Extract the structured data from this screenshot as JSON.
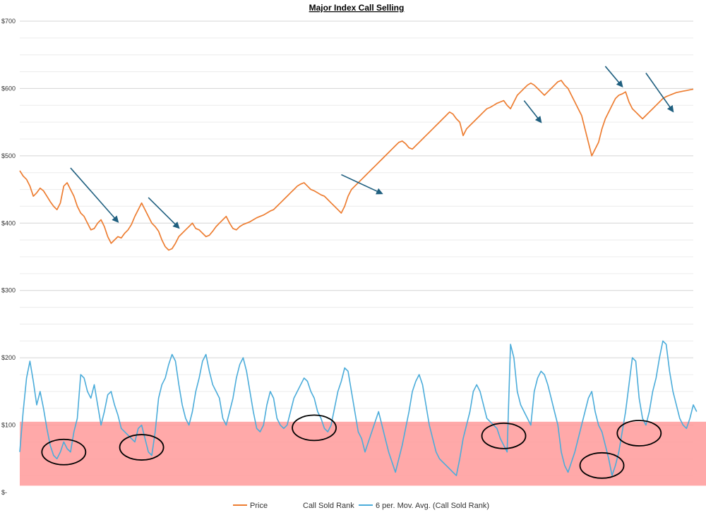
{
  "chart_data": {
    "type": "line",
    "title": "Major Index Call Selling",
    "y_axis": {
      "min": 0,
      "max": 700,
      "tick_values": [
        0,
        100,
        200,
        300,
        400,
        500,
        600,
        700
      ],
      "tick_labels": [
        "$-",
        "$100",
        "$200",
        "$300",
        "$400",
        "$500",
        "$600",
        "$700"
      ]
    },
    "x_axis": {
      "labels_shown": false,
      "num_points": 200
    },
    "grid": true,
    "legend_position": "bottom",
    "colors": {
      "price": "#ED7D31",
      "ma": "#4BACDA",
      "shade": "#FF9A9A",
      "arrow": "#1F5F7F",
      "circle": "#000000"
    },
    "highlight_band": {
      "y_from": 10,
      "y_to": 105
    },
    "series": [
      {
        "name": "Price",
        "key": "price",
        "values": [
          478,
          470,
          465,
          455,
          440,
          445,
          452,
          448,
          440,
          432,
          425,
          420,
          430,
          455,
          460,
          450,
          440,
          425,
          415,
          410,
          400,
          390,
          392,
          400,
          405,
          395,
          380,
          370,
          375,
          380,
          378,
          385,
          390,
          398,
          410,
          420,
          430,
          420,
          410,
          400,
          395,
          388,
          375,
          365,
          360,
          362,
          370,
          380,
          385,
          390,
          395,
          400,
          392,
          390,
          385,
          380,
          382,
          388,
          395,
          400,
          405,
          410,
          400,
          392,
          390,
          395,
          398,
          400,
          402,
          405,
          408,
          410,
          412,
          415,
          418,
          420,
          425,
          430,
          435,
          440,
          445,
          450,
          455,
          458,
          460,
          455,
          450,
          448,
          445,
          442,
          440,
          435,
          430,
          425,
          420,
          415,
          425,
          440,
          450,
          455,
          460,
          465,
          470,
          475,
          480,
          485,
          490,
          495,
          500,
          505,
          510,
          515,
          520,
          522,
          518,
          512,
          510,
          515,
          520,
          525,
          530,
          535,
          540,
          545,
          550,
          555,
          560,
          565,
          562,
          555,
          550,
          530,
          540,
          545,
          550,
          555,
          560,
          565,
          570,
          572,
          575,
          578,
          580,
          582,
          575,
          570,
          580,
          590,
          595,
          600,
          605,
          608,
          605,
          600,
          595,
          590,
          595,
          600,
          605,
          610,
          612,
          605,
          600,
          590,
          580,
          570,
          560,
          540,
          520,
          500,
          510,
          520,
          540,
          555,
          565,
          575,
          585,
          590,
          592,
          595,
          580,
          570,
          565,
          560,
          555,
          560,
          565,
          570,
          575,
          580,
          585,
          588,
          590,
          592,
          594,
          595,
          596,
          597,
          598,
          599
        ],
        "color": "#ED7D31"
      },
      {
        "name": "Call Sold Rank",
        "key": "csr",
        "values": [],
        "color": "#ffffff"
      },
      {
        "name": "6 per. Mov. Avg. (Call Sold Rank)",
        "key": "ma",
        "values": [
          60,
          120,
          170,
          195,
          165,
          130,
          150,
          125,
          95,
          70,
          55,
          50,
          60,
          75,
          65,
          60,
          90,
          110,
          175,
          170,
          150,
          140,
          160,
          130,
          100,
          120,
          145,
          150,
          130,
          115,
          95,
          90,
          85,
          80,
          75,
          95,
          100,
          80,
          60,
          55,
          90,
          140,
          160,
          170,
          190,
          205,
          195,
          160,
          130,
          110,
          100,
          120,
          150,
          170,
          195,
          205,
          180,
          160,
          150,
          140,
          110,
          100,
          120,
          140,
          170,
          190,
          200,
          180,
          150,
          120,
          95,
          90,
          100,
          130,
          150,
          140,
          110,
          100,
          95,
          100,
          120,
          140,
          150,
          160,
          170,
          165,
          150,
          140,
          120,
          110,
          95,
          90,
          100,
          125,
          150,
          165,
          185,
          180,
          150,
          120,
          90,
          80,
          60,
          75,
          90,
          105,
          120,
          100,
          80,
          60,
          45,
          30,
          50,
          70,
          95,
          120,
          150,
          165,
          175,
          160,
          130,
          100,
          80,
          60,
          50,
          45,
          40,
          35,
          30,
          25,
          50,
          80,
          100,
          120,
          150,
          160,
          150,
          130,
          110,
          105,
          100,
          95,
          80,
          70,
          60,
          220,
          200,
          150,
          130,
          120,
          110,
          100,
          150,
          170,
          180,
          175,
          160,
          140,
          120,
          100,
          60,
          40,
          30,
          45,
          60,
          80,
          100,
          120,
          140,
          150,
          120,
          100,
          90,
          70,
          50,
          25,
          40,
          60,
          90,
          120,
          160,
          200,
          195,
          140,
          110,
          100,
          120,
          150,
          170,
          200,
          225,
          220,
          180,
          150,
          130,
          110,
          100,
          95,
          110,
          130,
          120
        ]
      }
    ],
    "annotations": {
      "circles": [
        {
          "cx_index": 13,
          "cy_value": 60
        },
        {
          "cx_index": 36,
          "cy_value": 67
        },
        {
          "cx_index": 87,
          "cy_value": 96
        },
        {
          "cx_index": 143,
          "cy_value": 84
        },
        {
          "cx_index": 172,
          "cy_value": 40
        },
        {
          "cx_index": 183,
          "cy_value": 88
        }
      ],
      "arrows": [
        {
          "from_index": 15,
          "from_value": 482,
          "to_index": 29,
          "to_value": 402
        },
        {
          "from_index": 38,
          "from_value": 438,
          "to_index": 47,
          "to_value": 393
        },
        {
          "from_index": 95,
          "from_value": 472,
          "to_index": 107,
          "to_value": 444
        },
        {
          "from_index": 149,
          "from_value": 582,
          "to_index": 154,
          "to_value": 550
        },
        {
          "from_index": 173,
          "from_value": 633,
          "to_index": 178,
          "to_value": 603
        },
        {
          "from_index": 185,
          "from_value": 623,
          "to_index": 193,
          "to_value": 566
        }
      ]
    }
  }
}
